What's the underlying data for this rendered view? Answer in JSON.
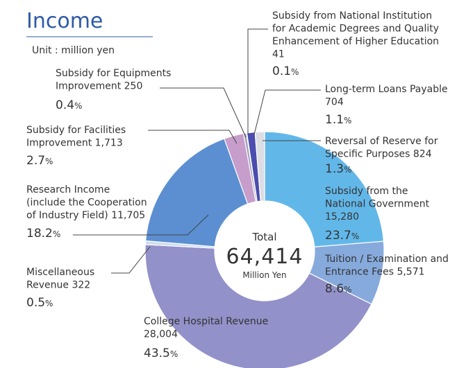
{
  "chart_data": {
    "type": "donut",
    "title": "Income",
    "subtitle": "Unit : million yen",
    "center_label": "Total",
    "total": 64414,
    "total_label": "64,414",
    "center_unit": "Million Yen",
    "label_lines": [
      [
        "Subsidy from the",
        "National Government"
      ],
      [
        "Tuition / Examination and",
        "Entrance Fees"
      ],
      [
        "College Hospital Revenue"
      ],
      [
        "Miscellaneous",
        "Revenue"
      ],
      [
        "Research Income",
        " (include the Cooperation",
        "of Industry Field)"
      ],
      [
        "Subsidy for Facilities",
        "Improvement"
      ],
      [
        "Subsidy for Equipments",
        "Improvement"
      ],
      [
        "Subsidy from National Institution",
        "for Academic Degrees and Quality",
        "Enhancement of Higher Education"
      ],
      [
        "Long-term Loans Payable"
      ],
      [
        "Reversal of Reserve for",
        "Specific Purposes"
      ]
    ],
    "values": [
      15280,
      5571,
      28004,
      322,
      11705,
      1713,
      250,
      41,
      704,
      824
    ],
    "value_labels": [
      "15,280",
      "5,571",
      "28,004",
      "322",
      "11,705",
      "1,713",
      "250",
      "41",
      "704",
      "824"
    ],
    "percents": [
      23.7,
      8.6,
      43.5,
      0.5,
      18.2,
      2.7,
      0.4,
      0.1,
      1.1,
      1.3
    ],
    "percent_labels": [
      "23.7%",
      "8.6%",
      "43.5%",
      "0.5%",
      "18.2%",
      "2.7%",
      "0.4%",
      "0.1%",
      "1.1%",
      "1.3%"
    ],
    "colors": [
      "#62b7e9",
      "#87aadd",
      "#9291c9",
      "#cfdcef",
      "#5b8fd1",
      "#c69dcb",
      "#a2a2bb",
      "#ffffff",
      "#4b4cae",
      "#dcdce5"
    ]
  }
}
